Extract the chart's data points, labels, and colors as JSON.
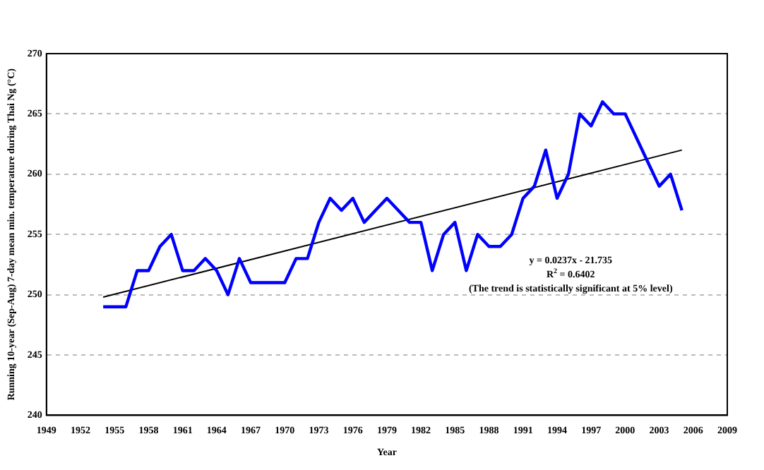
{
  "chart_data": {
    "type": "line",
    "xlabel": "Year",
    "ylabel": "Running 10-year (Sep-Aug) 7-day mean min. temperature during Thai Ng (°C)",
    "x": [
      1954,
      1955,
      1956,
      1957,
      1958,
      1959,
      1960,
      1961,
      1962,
      1963,
      1964,
      1965,
      1966,
      1967,
      1968,
      1969,
      1970,
      1971,
      1972,
      1973,
      1974,
      1975,
      1976,
      1977,
      1978,
      1979,
      1980,
      1981,
      1982,
      1983,
      1984,
      1985,
      1986,
      1987,
      1988,
      1989,
      1990,
      1991,
      1992,
      1993,
      1994,
      1995,
      1996,
      1997,
      1998,
      1999,
      2000,
      2001,
      2002,
      2003,
      2004,
      2005
    ],
    "series": [
      {
        "color": "#0000ff",
        "values": [
          249,
          249,
          249,
          252,
          252,
          254,
          255,
          252,
          252,
          253,
          252,
          250,
          253,
          251,
          251,
          251,
          251,
          253,
          253,
          256,
          258,
          257,
          258,
          256,
          257,
          258,
          257,
          256,
          256,
          252,
          255,
          256,
          252,
          255,
          254,
          254,
          255,
          258,
          259,
          262,
          258,
          260,
          265,
          264,
          266,
          265,
          265,
          263,
          261,
          259,
          260,
          257
        ]
      },
      {
        "color": "#000000",
        "x": [
          1954,
          2005
        ],
        "values": [
          249.8,
          262
        ]
      }
    ],
    "xlim": [
      1949,
      2009
    ],
    "xticks": [
      1949,
      1952,
      1955,
      1958,
      1961,
      1964,
      1967,
      1970,
      1973,
      1976,
      1979,
      1982,
      1985,
      1988,
      1991,
      1994,
      1997,
      2000,
      2003,
      2006,
      2009
    ],
    "ylim": [
      240,
      270
    ],
    "yticks": [
      240,
      245,
      250,
      255,
      260,
      265,
      270
    ],
    "grid": "y",
    "legend": false,
    "marker": "none",
    "annotations": [
      "y = 0.0237x - 21.735",
      "R$^{2}$ = 0.6402",
      "(The trend is statistically significant at 5% level)"
    ]
  }
}
